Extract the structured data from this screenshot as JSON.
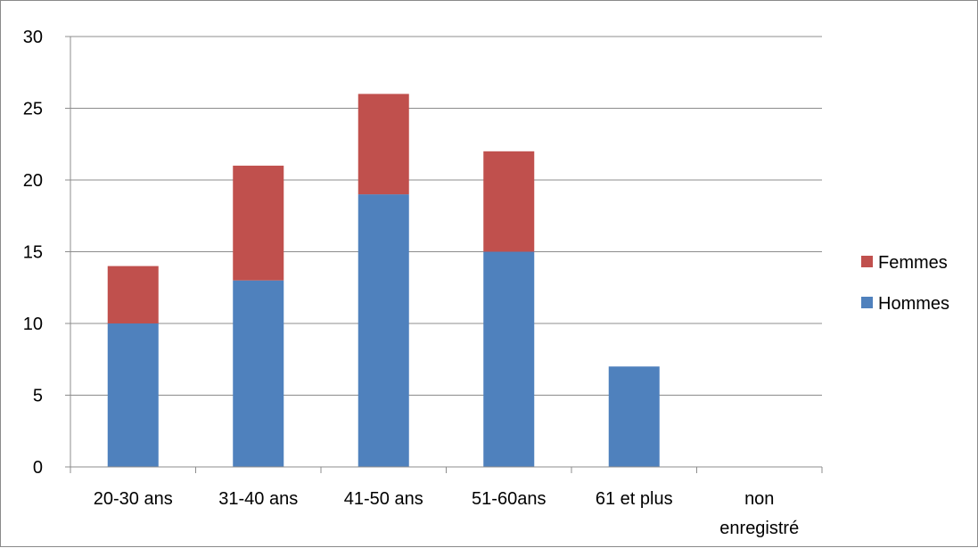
{
  "chart_data": {
    "type": "bar",
    "stacked": true,
    "title": "",
    "xlabel": "",
    "ylabel": "",
    "categories": [
      [
        "20-30 ans"
      ],
      [
        "31-40 ans"
      ],
      [
        "41-50 ans"
      ],
      [
        "51-60ans"
      ],
      [
        "61 et plus"
      ],
      [
        "non",
        "enregistré"
      ]
    ],
    "series": [
      {
        "name": "Hommes",
        "values": [
          10,
          13,
          19,
          15,
          7,
          0
        ],
        "color": "#4f81bd"
      },
      {
        "name": "Femmes",
        "values": [
          4,
          8,
          7,
          7,
          0,
          0
        ],
        "color": "#c0504d"
      }
    ],
    "ylim": [
      0,
      30
    ],
    "yticks": [
      0,
      5,
      10,
      15,
      20,
      25,
      30
    ],
    "grid": true,
    "legend": {
      "position": "right",
      "entries": [
        "Femmes",
        "Hommes"
      ]
    }
  }
}
